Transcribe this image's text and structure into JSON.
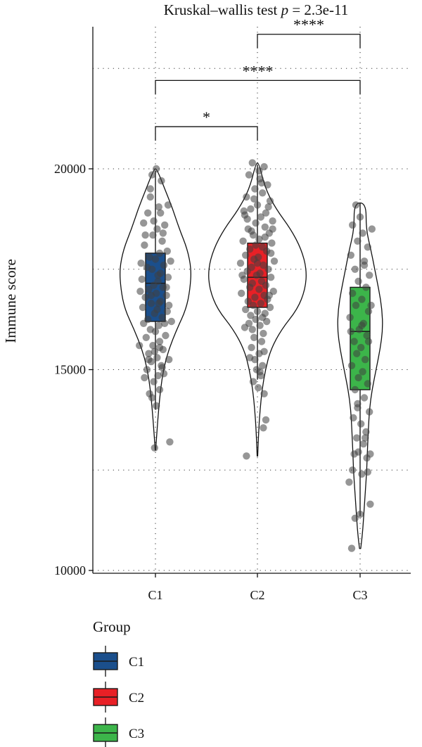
{
  "chart_data": {
    "type": "violin-box",
    "title_prefix": "Kruskal–wallis test ",
    "title_p_symbol": "p",
    "title_suffix": " = 2.3e-11",
    "ylabel": "Immune score",
    "xlabel": "",
    "categories": [
      "C1",
      "C2",
      "C3"
    ],
    "ylim": [
      10000,
      23500
    ],
    "yticks": [
      10000,
      15000,
      20000
    ],
    "ytick_labels": [
      "10000",
      "15000",
      "20000"
    ],
    "grid": true,
    "grid_y": [
      12500,
      17500,
      22500
    ],
    "series": [
      {
        "name": "C1",
        "color": "#1b4f8c",
        "box": {
          "q1": 16200,
          "median": 17150,
          "q3": 17900,
          "whisker_low": 14000,
          "whisker_high": 19950
        },
        "violin": {
          "min": 13000,
          "max": 20000,
          "profile": [
            [
              13000,
              0.2
            ],
            [
              13500,
              1.2
            ],
            [
              14000,
              2.4
            ],
            [
              14500,
              3.8
            ],
            [
              15000,
              6
            ],
            [
              15500,
              10
            ],
            [
              16000,
              16
            ],
            [
              16500,
              23
            ],
            [
              17000,
              26
            ],
            [
              17500,
              27
            ],
            [
              18000,
              24
            ],
            [
              18500,
              18
            ],
            [
              19000,
              13
            ],
            [
              19500,
              7
            ],
            [
              20000,
              1
            ]
          ]
        },
        "points": [
          [
            0.7,
            19700
          ],
          [
            -0.6,
            19300
          ],
          [
            0.4,
            19050
          ],
          [
            -0.9,
            18900
          ],
          [
            1.1,
            18600
          ],
          [
            0.2,
            18500
          ],
          [
            -0.3,
            18350
          ],
          [
            0.8,
            18200
          ],
          [
            -1.3,
            18100
          ],
          [
            1.4,
            17950
          ],
          [
            0.5,
            17900
          ],
          [
            -0.7,
            17800
          ],
          [
            0.0,
            17750
          ],
          [
            1.0,
            17600
          ],
          [
            -1.0,
            17550
          ],
          [
            -0.4,
            17500
          ],
          [
            0.6,
            17400
          ],
          [
            1.5,
            17300
          ],
          [
            -1.6,
            17250
          ],
          [
            0.3,
            17200
          ],
          [
            -0.2,
            17100
          ],
          [
            0.9,
            17050
          ],
          [
            -0.8,
            17000
          ],
          [
            0.1,
            16900
          ],
          [
            1.3,
            16850
          ],
          [
            -1.2,
            16800
          ],
          [
            0.6,
            16700
          ],
          [
            -0.5,
            16650
          ],
          [
            1.6,
            16600
          ],
          [
            -1.5,
            16550
          ],
          [
            0.2,
            16500
          ],
          [
            -0.1,
            16400
          ],
          [
            0.8,
            16300
          ],
          [
            -0.9,
            16250
          ],
          [
            1.1,
            16150
          ],
          [
            0.4,
            16100
          ],
          [
            -0.6,
            16000
          ],
          [
            0.0,
            15950
          ],
          [
            1.2,
            15850
          ],
          [
            -1.1,
            15800
          ],
          [
            0.5,
            15700
          ],
          [
            -0.3,
            15600
          ],
          [
            0.9,
            15500
          ],
          [
            -0.8,
            15400
          ],
          [
            0.2,
            15300
          ],
          [
            -0.5,
            15200
          ],
          [
            0.7,
            15100
          ],
          [
            -1.0,
            15000
          ],
          [
            0.3,
            14850
          ],
          [
            -0.2,
            14700
          ],
          [
            0.5,
            14500
          ],
          [
            -0.4,
            14300
          ],
          [
            0.1,
            14100
          ],
          [
            -0.1,
            13050
          ],
          [
            1.7,
            13200
          ],
          [
            -1.4,
            18650
          ],
          [
            1.5,
            19100
          ],
          [
            -0.4,
            19850
          ],
          [
            0.1,
            20000
          ],
          [
            -1.7,
            17650
          ],
          [
            1.8,
            17700
          ],
          [
            -1.8,
            16950
          ],
          [
            1.9,
            16200
          ],
          [
            -1.9,
            15600
          ],
          [
            1.6,
            15250
          ],
          [
            -1.3,
            14800
          ],
          [
            1.0,
            14900
          ],
          [
            -0.7,
            14400
          ],
          [
            0.6,
            18900
          ],
          [
            -0.2,
            18700
          ],
          [
            0.3,
            17350
          ],
          [
            -0.5,
            16850
          ],
          [
            1.3,
            17050
          ],
          [
            -1.4,
            16150
          ],
          [
            0.8,
            15050
          ],
          [
            -0.8,
            15250
          ],
          [
            0.4,
            16650
          ],
          [
            -0.1,
            15450
          ],
          [
            0.5,
            15550
          ],
          [
            0.9,
            18400
          ],
          [
            -1.2,
            18350
          ],
          [
            1.4,
            16450
          ],
          [
            -0.6,
            19500
          ]
        ]
      },
      {
        "name": "C2",
        "color": "#e82026",
        "box": {
          "q1": 16550,
          "median": 17300,
          "q3": 18150,
          "whisker_low": 14750,
          "whisker_high": 20100
        },
        "violin": {
          "min": 12850,
          "max": 20150,
          "profile": [
            [
              12850,
              0.2
            ],
            [
              13500,
              1
            ],
            [
              14000,
              2
            ],
            [
              14500,
              3.5
            ],
            [
              15000,
              6
            ],
            [
              15500,
              10
            ],
            [
              16000,
              18
            ],
            [
              16500,
              30
            ],
            [
              17000,
              36
            ],
            [
              17500,
              37
            ],
            [
              18000,
              33
            ],
            [
              18500,
              25
            ],
            [
              19000,
              14
            ],
            [
              19500,
              6
            ],
            [
              20150,
              1
            ]
          ]
        },
        "points": [
          [
            -0.6,
            20150
          ],
          [
            0.8,
            20050
          ],
          [
            -1.0,
            19850
          ],
          [
            0.3,
            19750
          ],
          [
            1.2,
            19600
          ],
          [
            -0.3,
            19500
          ],
          [
            0.6,
            19400
          ],
          [
            -1.3,
            19300
          ],
          [
            1.5,
            19200
          ],
          [
            0.0,
            19100
          ],
          [
            -0.8,
            19000
          ],
          [
            1.0,
            18900
          ],
          [
            -1.5,
            18850
          ],
          [
            0.4,
            18800
          ],
          [
            1.8,
            18700
          ],
          [
            -0.2,
            18650
          ],
          [
            0.9,
            18550
          ],
          [
            -1.1,
            18500
          ],
          [
            1.4,
            18400
          ],
          [
            -0.5,
            18350
          ],
          [
            0.2,
            18250
          ],
          [
            -1.7,
            18200
          ],
          [
            1.7,
            18150
          ],
          [
            0.6,
            18050
          ],
          [
            -0.9,
            18000
          ],
          [
            1.1,
            17950
          ],
          [
            -1.4,
            17850
          ],
          [
            0.1,
            17800
          ],
          [
            -0.4,
            17750
          ],
          [
            2.0,
            17700
          ],
          [
            -2.0,
            17650
          ],
          [
            0.7,
            17600
          ],
          [
            -0.7,
            17550
          ],
          [
            1.3,
            17500
          ],
          [
            -1.2,
            17450
          ],
          [
            0.3,
            17400
          ],
          [
            -0.1,
            17350
          ],
          [
            1.6,
            17300
          ],
          [
            -1.6,
            17250
          ],
          [
            0.5,
            17200
          ],
          [
            -0.6,
            17150
          ],
          [
            1.0,
            17100
          ],
          [
            -0.9,
            17050
          ],
          [
            0.2,
            17000
          ],
          [
            1.9,
            16950
          ],
          [
            -1.9,
            16900
          ],
          [
            0.8,
            16850
          ],
          [
            -0.3,
            16800
          ],
          [
            1.2,
            16750
          ],
          [
            -1.1,
            16700
          ],
          [
            0.4,
            16650
          ],
          [
            -0.5,
            16600
          ],
          [
            1.5,
            16550
          ],
          [
            -1.4,
            16500
          ],
          [
            0.0,
            16450
          ],
          [
            0.9,
            16400
          ],
          [
            -0.8,
            16350
          ],
          [
            0.6,
            16300
          ],
          [
            -0.2,
            16250
          ],
          [
            1.1,
            16200
          ],
          [
            -1.0,
            16150
          ],
          [
            0.3,
            16100
          ],
          [
            -0.6,
            16000
          ],
          [
            0.7,
            15900
          ],
          [
            -0.4,
            15800
          ],
          [
            0.5,
            15700
          ],
          [
            -0.7,
            15550
          ],
          [
            0.2,
            15400
          ],
          [
            -0.3,
            15250
          ],
          [
            0.6,
            15100
          ],
          [
            -0.1,
            15000
          ],
          [
            0.4,
            14850
          ],
          [
            -0.5,
            14700
          ],
          [
            0.1,
            14550
          ],
          [
            0.8,
            14400
          ],
          [
            1.0,
            13750
          ],
          [
            0.7,
            13550
          ],
          [
            -1.3,
            12850
          ],
          [
            0.2,
            19950
          ],
          [
            -0.4,
            19250
          ],
          [
            1.3,
            19050
          ],
          [
            -1.2,
            18750
          ],
          [
            0.9,
            18300
          ],
          [
            -0.7,
            18450
          ],
          [
            1.6,
            17900
          ],
          [
            -1.8,
            17350
          ],
          [
            0.0,
            17650
          ],
          [
            1.4,
            16850
          ],
          [
            -1.5,
            16050
          ],
          [
            0.8,
            15450
          ],
          [
            -0.9,
            15300
          ],
          [
            0.3,
            14950
          ],
          [
            -0.2,
            18100
          ],
          [
            1.8,
            18500
          ],
          [
            -1.6,
            18950
          ],
          [
            0.5,
            19650
          ]
        ]
      },
      {
        "name": "C3",
        "color": "#3cb54a",
        "box": {
          "q1": 14500,
          "median": 15950,
          "q3": 17050,
          "whisker_low": 11350,
          "whisker_high": 19150
        },
        "violin": {
          "min": 10550,
          "max": 19150,
          "profile": [
            [
              10550,
              0.5
            ],
            [
              11000,
              2
            ],
            [
              11500,
              3
            ],
            [
              12000,
              4
            ],
            [
              12500,
              5
            ],
            [
              13000,
              5.5
            ],
            [
              13500,
              6.2
            ],
            [
              14000,
              7
            ],
            [
              14500,
              9
            ],
            [
              15000,
              12
            ],
            [
              15500,
              15
            ],
            [
              16000,
              17
            ],
            [
              16500,
              16.5
            ],
            [
              17000,
              14
            ],
            [
              17500,
              11
            ],
            [
              18000,
              8
            ],
            [
              18500,
              4.5
            ],
            [
              19150,
              4.5
            ]
          ]
        },
        "points": [
          [
            -0.9,
            18600
          ],
          [
            0.3,
            18400
          ],
          [
            -0.3,
            18200
          ],
          [
            0.9,
            18050
          ],
          [
            -1.1,
            17850
          ],
          [
            0.5,
            17700
          ],
          [
            -0.6,
            17500
          ],
          [
            1.1,
            17350
          ],
          [
            -0.2,
            17200
          ],
          [
            0.7,
            17050
          ],
          [
            -0.9,
            16900
          ],
          [
            0.2,
            16750
          ],
          [
            -0.5,
            16600
          ],
          [
            1.0,
            16450
          ],
          [
            -1.2,
            16300
          ],
          [
            0.4,
            16150
          ],
          [
            -0.1,
            16000
          ],
          [
            0.8,
            15850
          ],
          [
            -0.7,
            15700
          ],
          [
            0.1,
            15550
          ],
          [
            -0.4,
            15400
          ],
          [
            0.6,
            15250
          ],
          [
            -1.0,
            15100
          ],
          [
            0.3,
            14950
          ],
          [
            -0.2,
            14800
          ],
          [
            0.9,
            14650
          ],
          [
            -0.6,
            14500
          ],
          [
            0.5,
            14300
          ],
          [
            -0.3,
            14150
          ],
          [
            1.1,
            13950
          ],
          [
            -0.8,
            13800
          ],
          [
            0.1,
            13650
          ],
          [
            0.7,
            13450
          ],
          [
            -0.4,
            13300
          ],
          [
            0.4,
            13150
          ],
          [
            -0.2,
            12950
          ],
          [
            0.8,
            12800
          ],
          [
            -0.9,
            12500
          ],
          [
            0.2,
            12400
          ],
          [
            -1.3,
            12200
          ],
          [
            -0.6,
            11300
          ],
          [
            0.0,
            11400
          ],
          [
            1.2,
            11650
          ],
          [
            -1.0,
            10550
          ],
          [
            1.4,
            18500
          ],
          [
            0.0,
            18800
          ],
          [
            -0.5,
            19100
          ],
          [
            1.3,
            16600
          ],
          [
            -1.1,
            15950
          ],
          [
            1.0,
            15700
          ],
          [
            0.6,
            13300
          ],
          [
            1.2,
            12900
          ],
          [
            -0.7,
            12900
          ],
          [
            0.5,
            17600
          ],
          [
            0.2,
            16100
          ],
          [
            -0.3,
            14050
          ],
          [
            0.9,
            12450
          ]
        ]
      }
    ],
    "comparisons": [
      {
        "groups": [
          "C1",
          "C2"
        ],
        "label": "*",
        "y": 21050
      },
      {
        "groups": [
          "C1",
          "C3"
        ],
        "label": "****",
        "y": 22200
      },
      {
        "groups": [
          "C2",
          "C3"
        ],
        "label": "****",
        "y": 23350
      }
    ],
    "legend": {
      "title": "Group",
      "placement": "bottom",
      "items": [
        {
          "label": "C1",
          "color": "#1b4f8c"
        },
        {
          "label": "C2",
          "color": "#e82026"
        },
        {
          "label": "C3",
          "color": "#3cb54a"
        }
      ]
    }
  }
}
